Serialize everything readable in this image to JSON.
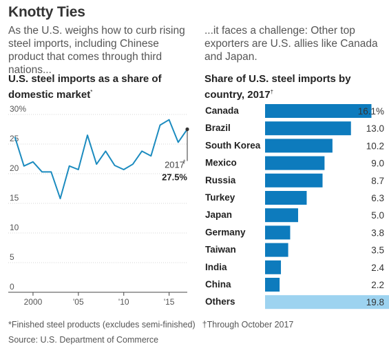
{
  "headline": "Knotty Ties",
  "intro_left": "As the U.S. weighs how to curb rising steel imports, including Chinese product that comes through third nations...",
  "intro_right": "...it faces a challenge: Other top exporters are U.S. allies like Canada and Japan.",
  "left_chart_title": "U.S. steel imports as a share of domestic market",
  "left_chart_title_mark": "*",
  "right_chart_title": "Share of U.S. steel imports by country, 2017",
  "right_chart_title_mark": "†",
  "footnote_1": "*Finished steel products (excludes semi-finished)",
  "footnote_2": "†Through October 2017",
  "source": "Source: U.S. Department of Commerce",
  "chart_data": [
    {
      "type": "line",
      "title": "U.S. steel imports as a share of domestic market",
      "x": [
        1998,
        1999,
        2000,
        2001,
        2002,
        2003,
        2004,
        2005,
        2006,
        2007,
        2008,
        2009,
        2010,
        2011,
        2012,
        2013,
        2014,
        2015,
        2016,
        2017
      ],
      "values": [
        26.2,
        21.3,
        22.0,
        20.3,
        20.3,
        15.8,
        21.3,
        20.7,
        26.5,
        21.6,
        23.8,
        21.4,
        20.7,
        21.6,
        23.8,
        23.0,
        28.2,
        29.1,
        25.3,
        27.5
      ],
      "ylim": [
        0,
        30
      ],
      "yticks": [
        "30%",
        "25",
        "20",
        "15",
        "10",
        "5",
        "0"
      ],
      "ytick_values": [
        30,
        25,
        20,
        15,
        10,
        5,
        0
      ],
      "xticks": [
        "2000",
        "'05",
        "'10",
        "'15"
      ],
      "xtick_values": [
        2000,
        2005,
        2010,
        2015
      ],
      "annotation_year": "2017",
      "annotation_mark": "†",
      "annotation_value": "27.5%",
      "line_color": "#1b8bbf",
      "grid": true
    },
    {
      "type": "bar",
      "orientation": "horizontal",
      "title": "Share of U.S. steel imports by country, 2017",
      "categories": [
        "Canada",
        "Brazil",
        "South Korea",
        "Mexico",
        "Russia",
        "Turkey",
        "Japan",
        "Germany",
        "Taiwan",
        "India",
        "China",
        "Others"
      ],
      "values": [
        16.1,
        13.0,
        10.2,
        9.0,
        8.7,
        6.3,
        5.0,
        3.8,
        3.5,
        2.4,
        2.2,
        19.8
      ],
      "labels": [
        "16.1%",
        "13.0",
        "10.2",
        "9.0",
        "8.7",
        "6.3",
        "5.0",
        "3.8",
        "3.5",
        "2.4",
        "2.2",
        "19.8"
      ],
      "xlim": [
        0,
        19.8
      ],
      "bar_color": "#0d7bbd",
      "others_color": "#9dd3f0"
    }
  ]
}
